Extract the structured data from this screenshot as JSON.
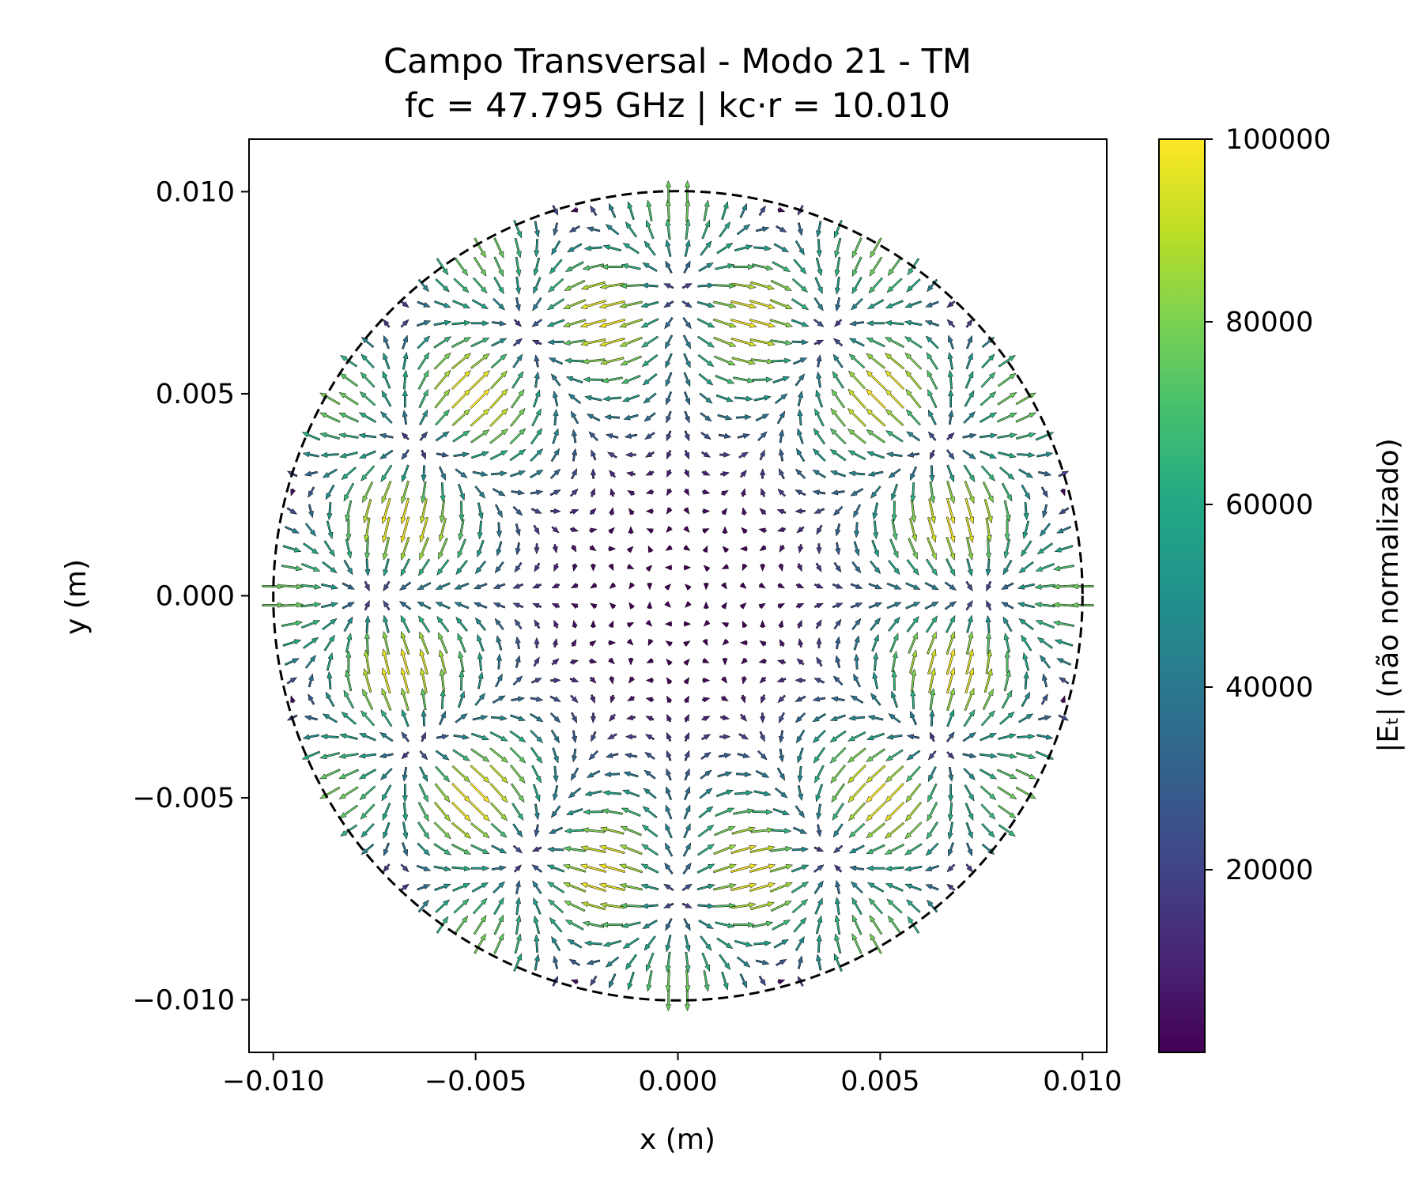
{
  "chart_data": {
    "type": "quiver",
    "title_line1": "Campo Transversal - Modo 21 - TM",
    "title_line2": "fc = 47.795 GHz | kc·r = 10.010",
    "xlabel": "x (m)",
    "ylabel": "y (m)",
    "xlim": [
      -0.0106,
      0.0106
    ],
    "ylim": [
      -0.0113,
      0.0113
    ],
    "xticks": [
      -0.01,
      -0.005,
      0.0,
      0.005,
      0.01
    ],
    "xtick_labels": [
      "−0.010",
      "−0.005",
      "0.000",
      "0.005",
      "0.010"
    ],
    "yticks": [
      0.01,
      0.005,
      0.0,
      -0.005,
      -0.01
    ],
    "ytick_labels": [
      "0.010",
      "0.005",
      "0.000",
      "−0.005",
      "−0.010"
    ],
    "guide_circle_radius": 0.01,
    "field": {
      "radius": 0.01,
      "kc_r": 10.01,
      "azimuthal_order": 6,
      "peak_magnitude": 100000
    },
    "colorbar": {
      "label": "|Eₜ| (não normalizado)",
      "colormap": "viridis",
      "range": [
        0,
        100000
      ],
      "ticks": [
        20000,
        40000,
        60000,
        80000,
        100000
      ],
      "tick_labels": [
        "20000",
        "40000",
        "60000",
        "80000",
        "100000"
      ]
    },
    "grid": false
  }
}
